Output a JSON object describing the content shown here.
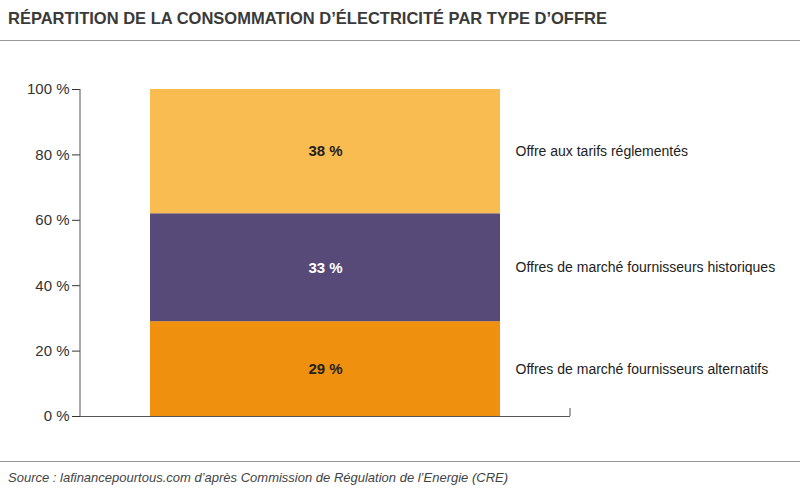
{
  "chart_data": {
    "type": "bar",
    "title": "RÉPARTITION DE LA CONSOMMATION D’ÉLECTRICITÉ PAR TYPE D’OFFRE",
    "caption": "Source : lafinancepourtous.com d’après Commission de Régulation de l’Energie (CRE)",
    "categories": [
      null
    ],
    "series": [
      {
        "name": "Offres de marché fournisseurs alternatifs",
        "color": "#f0900f",
        "values": [
          29
        ],
        "value_labels": [
          "29 %"
        ]
      },
      {
        "name": "Offres de marché fournisseurs historiques",
        "color": "#574a78",
        "values": [
          33
        ],
        "value_labels": [
          "33 %"
        ]
      },
      {
        "name": "Offre aux tarifs réglementés",
        "color": "#f9bc50",
        "values": [
          38
        ],
        "value_labels": [
          "38 %"
        ]
      }
    ],
    "stacked": true,
    "data_labels": true,
    "legend": "right",
    "grid": false,
    "tick_labels": "y",
    "ylim": [
      0,
      100
    ],
    "yticks": [
      {
        "value": 0,
        "label": "0 %"
      },
      {
        "value": 20,
        "label": "20 %"
      },
      {
        "value": 40,
        "label": "40 %"
      },
      {
        "value": 60,
        "label": "60 %"
      },
      {
        "value": 80,
        "label": "80 %"
      },
      {
        "value": 100,
        "label": "100 %"
      }
    ]
  }
}
